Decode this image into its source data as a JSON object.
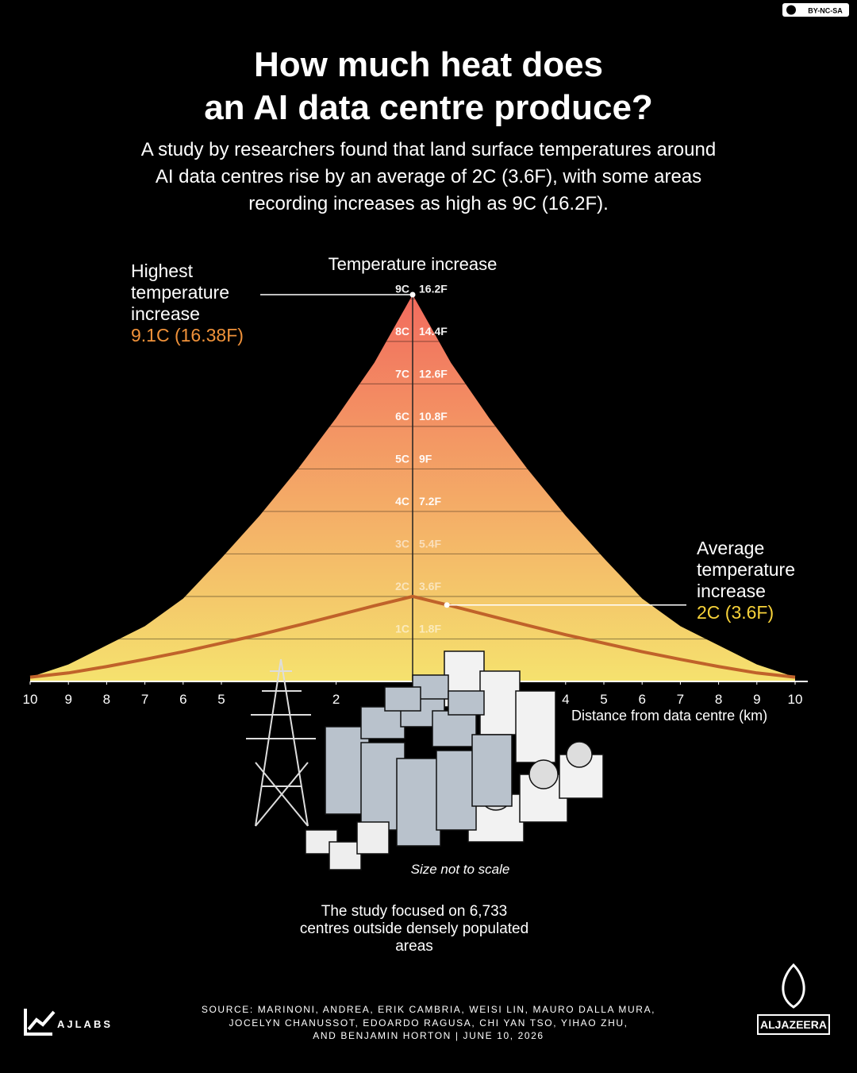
{
  "chart_data": {
    "type": "area",
    "license": "BY-NC-SA",
    "title": [
      "How much heat does",
      "an AI data centre produce?"
    ],
    "subtitle": [
      "A study by researchers found that land surface temperatures around",
      "AI data centres rise by an average of 2C (3.6F), with some areas",
      "recording increases as high as 9C (16.2F)."
    ],
    "y_label": "Temperature increase",
    "x_label": "Distance from data centre (km)",
    "x": [
      -10,
      -9,
      -8,
      -7,
      -6,
      -5,
      -4,
      -3,
      -2,
      -1,
      0,
      1,
      2,
      3,
      4,
      5,
      6,
      7,
      8,
      9,
      10
    ],
    "series": [
      {
        "name": "Highest temperature increase",
        "color": "#f5e26e",
        "top_color": "#f26b5e",
        "values": [
          0.1,
          0.4,
          0.85,
          1.3,
          1.95,
          2.9,
          3.9,
          5,
          6.2,
          7.5,
          9.1,
          7.5,
          6.2,
          5,
          3.9,
          2.9,
          1.95,
          1.3,
          0.85,
          0.4,
          0.1
        ],
        "annotation": "9.1C (16.38F)",
        "annotation_color": "#f0923a"
      },
      {
        "name": "Average temperature increase",
        "color": "#c0622a",
        "values": [
          0.1,
          0.2,
          0.35,
          0.52,
          0.7,
          0.9,
          1.1,
          1.32,
          1.55,
          1.78,
          2,
          1.78,
          1.55,
          1.32,
          1.1,
          0.9,
          0.7,
          0.52,
          0.35,
          0.2,
          0.1
        ],
        "annotation": "2C (3.6F)",
        "annotation_color": "#f7d23a"
      }
    ],
    "xlim": [
      -10,
      10
    ],
    "xticks": [
      {
        "value": -10,
        "label": "10"
      },
      {
        "value": -9,
        "label": "9"
      },
      {
        "value": -8,
        "label": "8"
      },
      {
        "value": -7,
        "label": "7"
      },
      {
        "value": -6,
        "label": "6"
      },
      {
        "value": -5,
        "label": "5"
      },
      {
        "value": -2,
        "label": "2"
      },
      4,
      5,
      6,
      7,
      8,
      9,
      10
    ],
    "ylim": [
      0,
      9.1
    ],
    "yticks": [
      {
        "value": 1,
        "label": "1C"
      },
      {
        "value": 2,
        "label": "2C"
      },
      {
        "value": 3,
        "label": "3C"
      },
      {
        "value": 4,
        "label": "4C"
      },
      {
        "value": 5,
        "label": "5C"
      },
      {
        "value": 6,
        "label": "6C"
      },
      {
        "value": 7,
        "label": "7C"
      },
      {
        "value": 8,
        "label": "8C"
      },
      {
        "value": 9,
        "label": "9C"
      }
    ],
    "y2lim": [
      0,
      16.38
    ],
    "y2ticks": [
      {
        "value": 1.8,
        "label": "1.8F"
      },
      {
        "value": 3.6,
        "label": "3.6F"
      },
      {
        "value": 5.4,
        "label": "5.4F"
      },
      {
        "value": 7.2,
        "label": "7.2F"
      },
      {
        "value": 9,
        "label": "9F"
      },
      {
        "value": 10.8,
        "label": "10.8F"
      },
      {
        "value": 12.6,
        "label": "12.6F"
      },
      {
        "value": 14.4,
        "label": "14.4F"
      },
      {
        "value": 16.2,
        "label": "16.2F"
      }
    ],
    "grid": true,
    "note_scale": "Size not to scale",
    "note_study": "The study focused on 6,733 centres outside densely populated areas",
    "source": [
      "SOURCE:  MARINONI, ANDREA, ERIK CAMBRIA, WEISI LIN, MAURO DALLA MURA,",
      "JOCELYN CHANUSSOT, EDOARDO RAGUSA, CHI YAN TSO, YIHAO ZHU,",
      "AND BENJAMIN HORTON   |   JUNE 10, 2026"
    ],
    "brand_left": "AJLABS",
    "brand_right": "ALJAZEERA"
  }
}
